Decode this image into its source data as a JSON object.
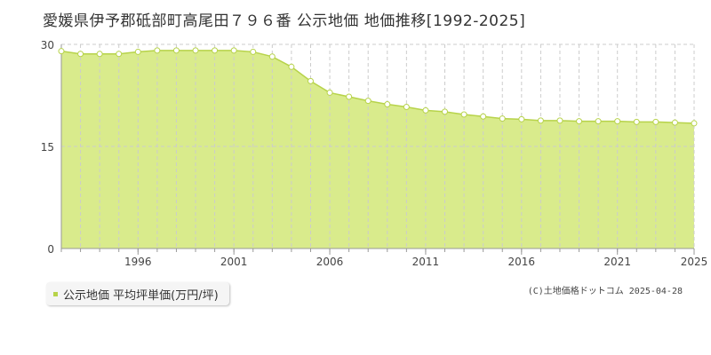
{
  "title": "愛媛県伊予郡砥部町高尾田７９６番 公示地価 地価推移[1992-2025]",
  "legend": {
    "label": "公示地価 平均坪単価(万円/坪)",
    "marker_color": "#b7d34a"
  },
  "copyright": "(C)土地価格ドットコム 2025-04-28",
  "colors": {
    "fill": "#d9eb8c",
    "line": "#b7d34a",
    "grid": "#cccccc",
    "axis": "#999999",
    "point_fill": "#ffffff"
  },
  "chart_data": {
    "type": "area",
    "x": [
      1992,
      1993,
      1994,
      1995,
      1996,
      1997,
      1998,
      1999,
      2000,
      2001,
      2002,
      2003,
      2004,
      2005,
      2006,
      2007,
      2008,
      2009,
      2010,
      2011,
      2012,
      2013,
      2014,
      2015,
      2016,
      2017,
      2018,
      2019,
      2020,
      2021,
      2022,
      2023,
      2024,
      2025
    ],
    "series": [
      {
        "values": [
          29.0,
          28.6,
          28.6,
          28.6,
          28.9,
          29.1,
          29.1,
          29.1,
          29.1,
          29.1,
          28.9,
          28.2,
          26.7,
          24.6,
          22.9,
          22.3,
          21.7,
          21.2,
          20.8,
          20.3,
          20.1,
          19.7,
          19.4,
          19.1,
          19.0,
          18.8,
          18.8,
          18.7,
          18.7,
          18.7,
          18.6,
          18.6,
          18.5,
          18.4
        ]
      }
    ],
    "xticks": [
      "1996",
      "2001",
      "2006",
      "2011",
      "2016",
      "2021",
      "2025"
    ],
    "yticks": [
      "0",
      "15",
      "30"
    ],
    "xlim": [
      1992,
      2025
    ],
    "ylim": [
      0,
      30
    ],
    "grid": true
  }
}
